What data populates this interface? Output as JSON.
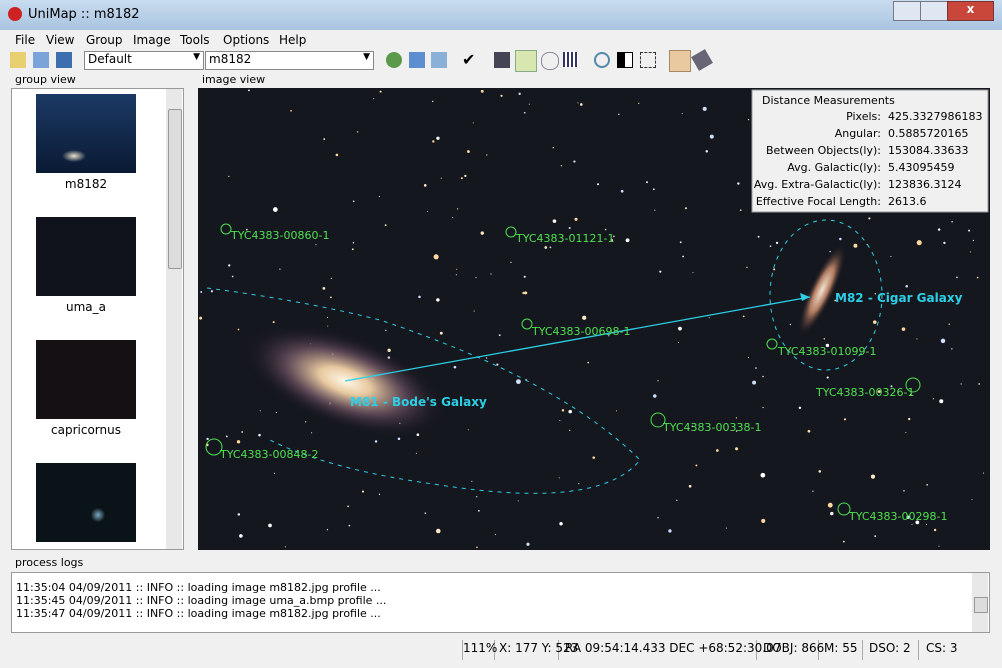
{
  "window": {
    "title": "UniMap :: m8182"
  },
  "menu": [
    "File",
    "View",
    "Group",
    "Image",
    "Tools",
    "Options",
    "Help"
  ],
  "toolbar": {
    "profile": "Default",
    "image": "m8182"
  },
  "group_view": {
    "label": "group view",
    "items": [
      "m8182",
      "uma_a",
      "capricornus"
    ]
  },
  "image_view": {
    "label": "image view",
    "objects": [
      "TYC4383-00860-1",
      "TYC4383-01121-1",
      "TYC4383-00698-1",
      "TYC4383-01099-1",
      "TYC4383-00326-1",
      "TYC4383-00338-1",
      "TYC4383-00848-2",
      "TYC4383-00298-1"
    ],
    "galaxies": [
      "M81 - Bode's Galaxy",
      "M82 - Cigar Galaxy"
    ],
    "measurements": {
      "title": "Distance Measurements",
      "rows": [
        [
          "Pixels:",
          "425.3327986183"
        ],
        [
          "Angular:",
          "0.5885720165"
        ],
        [
          "Between Objects(ly):",
          "153084.33633"
        ],
        [
          "Avg. Galactic(ly):",
          "5.43095459"
        ],
        [
          "Avg. Extra-Galactic(ly):",
          "123836.3124"
        ],
        [
          "Effective Focal Length:",
          "2613.6"
        ]
      ]
    }
  },
  "process_logs": {
    "label": "process logs",
    "lines": [
      "11:35:04 04/09/2011 :: INFO :: loading image m8182.jpg profile ...",
      "11:35:45 04/09/2011 :: INFO :: loading image uma_a.bmp profile ...",
      "11:35:47 04/09/2011 :: INFO :: loading image m8182.jpg profile ..."
    ]
  },
  "status": [
    "111%",
    "X: 177 Y: 523",
    "RA  09:54:14.433 DEC +68:52:30.07",
    "DOBJ: 866",
    "M:  55",
    "DSO:  2",
    "CS:  3"
  ]
}
